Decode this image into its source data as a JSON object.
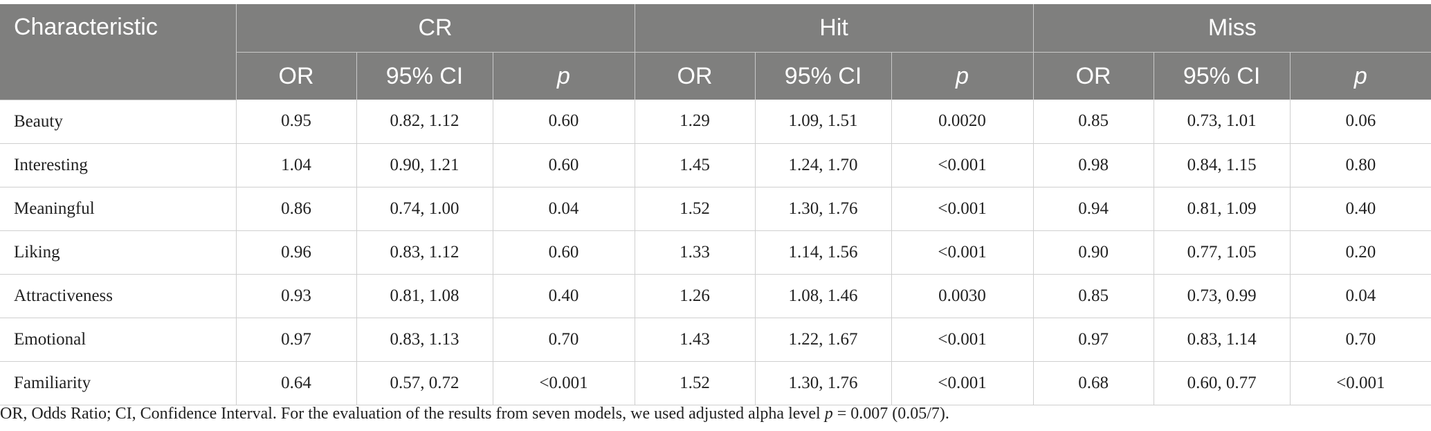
{
  "table": {
    "corner_header": "Characteristic",
    "groups": [
      "CR",
      "Hit",
      "Miss"
    ],
    "subheaders": {
      "or": "OR",
      "ci": "95% CI",
      "p": "p"
    },
    "rows": [
      {
        "name": "Beauty",
        "cr": [
          "0.95",
          "0.82, 1.12",
          "0.60"
        ],
        "hit": [
          "1.29",
          "1.09, 1.51",
          "0.0020"
        ],
        "miss": [
          "0.85",
          "0.73, 1.01",
          "0.06"
        ]
      },
      {
        "name": "Interesting",
        "cr": [
          "1.04",
          "0.90, 1.21",
          "0.60"
        ],
        "hit": [
          "1.45",
          "1.24, 1.70",
          "<0.001"
        ],
        "miss": [
          "0.98",
          "0.84, 1.15",
          "0.80"
        ]
      },
      {
        "name": "Meaningful",
        "cr": [
          "0.86",
          "0.74, 1.00",
          "0.04"
        ],
        "hit": [
          "1.52",
          "1.30, 1.76",
          "<0.001"
        ],
        "miss": [
          "0.94",
          "0.81, 1.09",
          "0.40"
        ]
      },
      {
        "name": "Liking",
        "cr": [
          "0.96",
          "0.83, 1.12",
          "0.60"
        ],
        "hit": [
          "1.33",
          "1.14, 1.56",
          "<0.001"
        ],
        "miss": [
          "0.90",
          "0.77, 1.05",
          "0.20"
        ]
      },
      {
        "name": "Attractiveness",
        "cr": [
          "0.93",
          "0.81, 1.08",
          "0.40"
        ],
        "hit": [
          "1.26",
          "1.08, 1.46",
          "0.0030"
        ],
        "miss": [
          "0.85",
          "0.73, 0.99",
          "0.04"
        ]
      },
      {
        "name": "Emotional",
        "cr": [
          "0.97",
          "0.83, 1.13",
          "0.70"
        ],
        "hit": [
          "1.43",
          "1.22, 1.67",
          "<0.001"
        ],
        "miss": [
          "0.97",
          "0.83, 1.14",
          "0.70"
        ]
      },
      {
        "name": "Familiarity",
        "cr": [
          "0.64",
          "0.57, 0.72",
          "<0.001"
        ],
        "hit": [
          "1.52",
          "1.30, 1.76",
          "<0.001"
        ],
        "miss": [
          "0.68",
          "0.60, 0.77",
          "<0.001"
        ]
      }
    ]
  },
  "footnote": {
    "before": "OR, Odds Ratio; CI, Confidence Interval. For the evaluation of the results from seven models, we used adjusted alpha level ",
    "p_symbol": "p",
    "after": " = 0.007 (0.05/7)."
  }
}
